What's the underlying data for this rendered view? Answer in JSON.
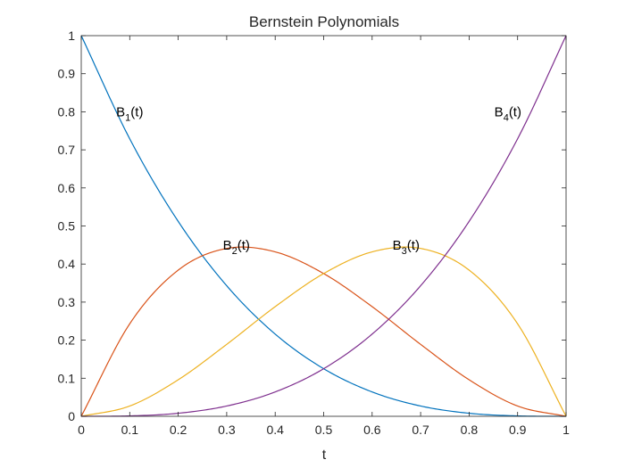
{
  "chart_data": {
    "type": "line",
    "title": "Bernstein Polynomials",
    "xlabel": "t",
    "ylabel": "",
    "xlim": [
      0,
      1
    ],
    "ylim": [
      0,
      1
    ],
    "grid": false,
    "xticks": [
      "0",
      "0.1",
      "0.2",
      "0.3",
      "0.4",
      "0.5",
      "0.6",
      "0.7",
      "0.8",
      "0.9",
      "1"
    ],
    "yticks": [
      "0",
      "0.1",
      "0.2",
      "0.3",
      "0.4",
      "0.5",
      "0.6",
      "0.7",
      "0.8",
      "0.9",
      "1"
    ],
    "x": [
      0,
      0.1,
      0.2,
      0.3,
      0.4,
      0.5,
      0.6,
      0.7,
      0.8,
      0.9,
      1
    ],
    "series": [
      {
        "values": [
          1,
          0.729,
          0.512,
          0.343,
          0.216,
          0.125,
          0.064,
          0.027,
          0.008,
          0.001,
          0
        ],
        "color": "#0072BD"
      },
      {
        "values": [
          0,
          0.243,
          0.384,
          0.441,
          0.432,
          0.375,
          0.288,
          0.189,
          0.096,
          0.027,
          0
        ],
        "color": "#D95319"
      },
      {
        "values": [
          0,
          0.027,
          0.096,
          0.189,
          0.288,
          0.375,
          0.432,
          0.441,
          0.384,
          0.243,
          0
        ],
        "color": "#EDB120"
      },
      {
        "values": [
          0,
          0.001,
          0.008,
          0.027,
          0.064,
          0.125,
          0.216,
          0.343,
          0.512,
          0.729,
          1
        ],
        "color": "#7E2F8E"
      }
    ],
    "annotations": [
      {
        "base": "B",
        "sub": "1",
        "suffix": "(t)",
        "x": 0.1,
        "y": 0.8
      },
      {
        "base": "B",
        "sub": "2",
        "suffix": "(t)",
        "x": 0.32,
        "y": 0.45
      },
      {
        "base": "B",
        "sub": "3",
        "suffix": "(t)",
        "x": 0.67,
        "y": 0.45
      },
      {
        "base": "B",
        "sub": "4",
        "suffix": "(t)",
        "x": 0.88,
        "y": 0.8
      }
    ]
  }
}
